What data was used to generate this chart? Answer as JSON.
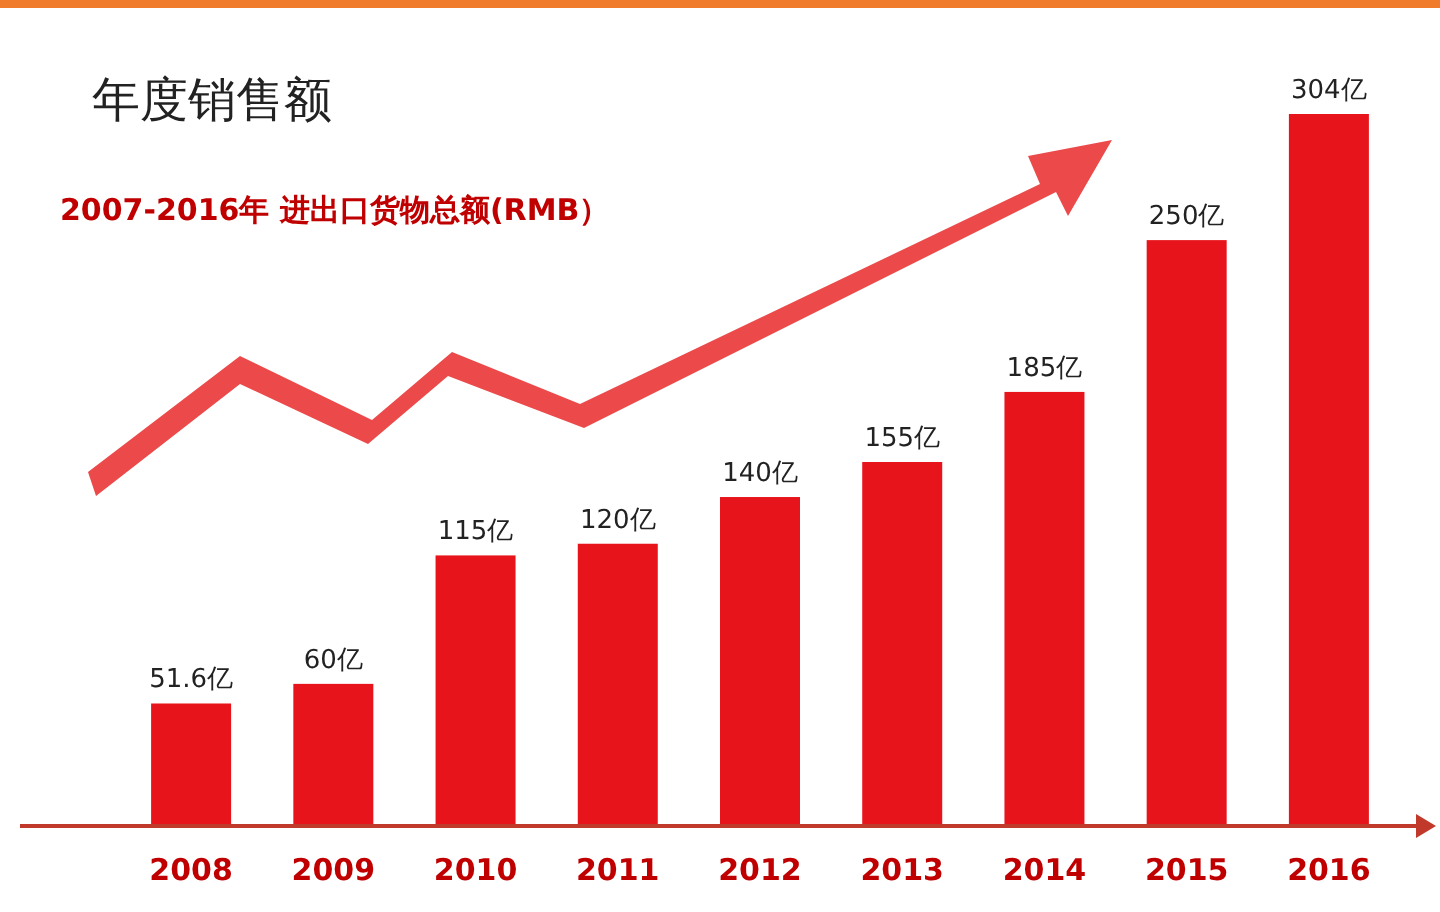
{
  "chart_data": {
    "type": "bar",
    "title": "年度销售额",
    "subtitle": "2007-2016年  进出口货物总额(RMB）",
    "categories": [
      "2008",
      "2009",
      "2010",
      "2011",
      "2012",
      "2013",
      "2014",
      "2015",
      "2016"
    ],
    "values": [
      51.6,
      60,
      115,
      120,
      140,
      155,
      185,
      250,
      304
    ],
    "value_labels": [
      "51.6亿",
      "60亿",
      "115亿",
      "120亿",
      "140亿",
      "155亿",
      "185亿",
      "250亿",
      "304亿"
    ],
    "color": "#e8141b"
  }
}
